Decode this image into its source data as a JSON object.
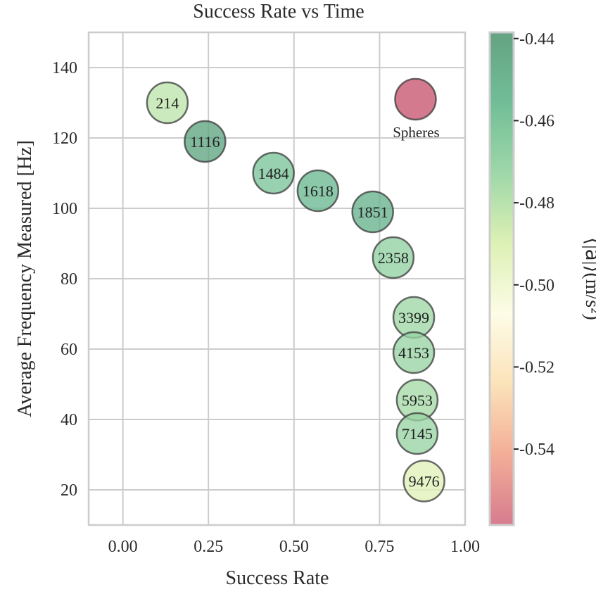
{
  "chart_data": {
    "type": "scatter",
    "title": "Success Rate vs Time",
    "xlabel": "Success Rate",
    "ylabel": "Average Frequency Measured [Hz]",
    "xlim": [
      -0.1,
      1.0
    ],
    "ylim": [
      10,
      150
    ],
    "xticks": [
      "0.00",
      "0.25",
      "0.50",
      "0.75",
      "1.00"
    ],
    "xtick_values": [
      0.0,
      0.25,
      0.5,
      0.75,
      1.0
    ],
    "yticks": [
      "20",
      "40",
      "60",
      "80",
      "100",
      "120",
      "140"
    ],
    "ytick_values": [
      20,
      40,
      60,
      80,
      100,
      120,
      140
    ],
    "grid": true,
    "points": [
      {
        "label": "214",
        "x": 0.13,
        "y": 130,
        "color_value": -0.482
      },
      {
        "label": "1116",
        "x": 0.24,
        "y": 119,
        "color_value": -0.442
      },
      {
        "label": "1484",
        "x": 0.44,
        "y": 110,
        "color_value": -0.462
      },
      {
        "label": "1618",
        "x": 0.57,
        "y": 105,
        "color_value": -0.455
      },
      {
        "label": "1851",
        "x": 0.73,
        "y": 99,
        "color_value": -0.451
      },
      {
        "label": "2358",
        "x": 0.79,
        "y": 86,
        "color_value": -0.47
      },
      {
        "label": "3399",
        "x": 0.85,
        "y": 69,
        "color_value": -0.474
      },
      {
        "label": "4153",
        "x": 0.85,
        "y": 59,
        "color_value": -0.472
      },
      {
        "label": "5953",
        "x": 0.86,
        "y": 45.5,
        "color_value": -0.476
      },
      {
        "label": "7145",
        "x": 0.86,
        "y": 36,
        "color_value": -0.472
      },
      {
        "label": "9476",
        "x": 0.88,
        "y": 22.5,
        "color_value": -0.492
      }
    ],
    "annotation": {
      "label": "Spheres",
      "x": 0.855,
      "y": 131,
      "color": "#d27388"
    },
    "colorbar": {
      "label": "⟨|a⃗|⟩(m/s²)",
      "range": [
        -0.5585,
        -0.4385
      ],
      "ticks": [
        "-0.44",
        "-0.46",
        "-0.48",
        "-0.50",
        "-0.52",
        "-0.54"
      ],
      "tick_values": [
        -0.44,
        -0.46,
        -0.48,
        -0.5,
        -0.52,
        -0.54
      ],
      "colors_low_to_high": [
        "#d57589",
        "#f2a992",
        "#fbe1b5",
        "#fdfce6",
        "#dbf0b0",
        "#99d5a4",
        "#6aba92",
        "#5c9e7c"
      ]
    }
  }
}
